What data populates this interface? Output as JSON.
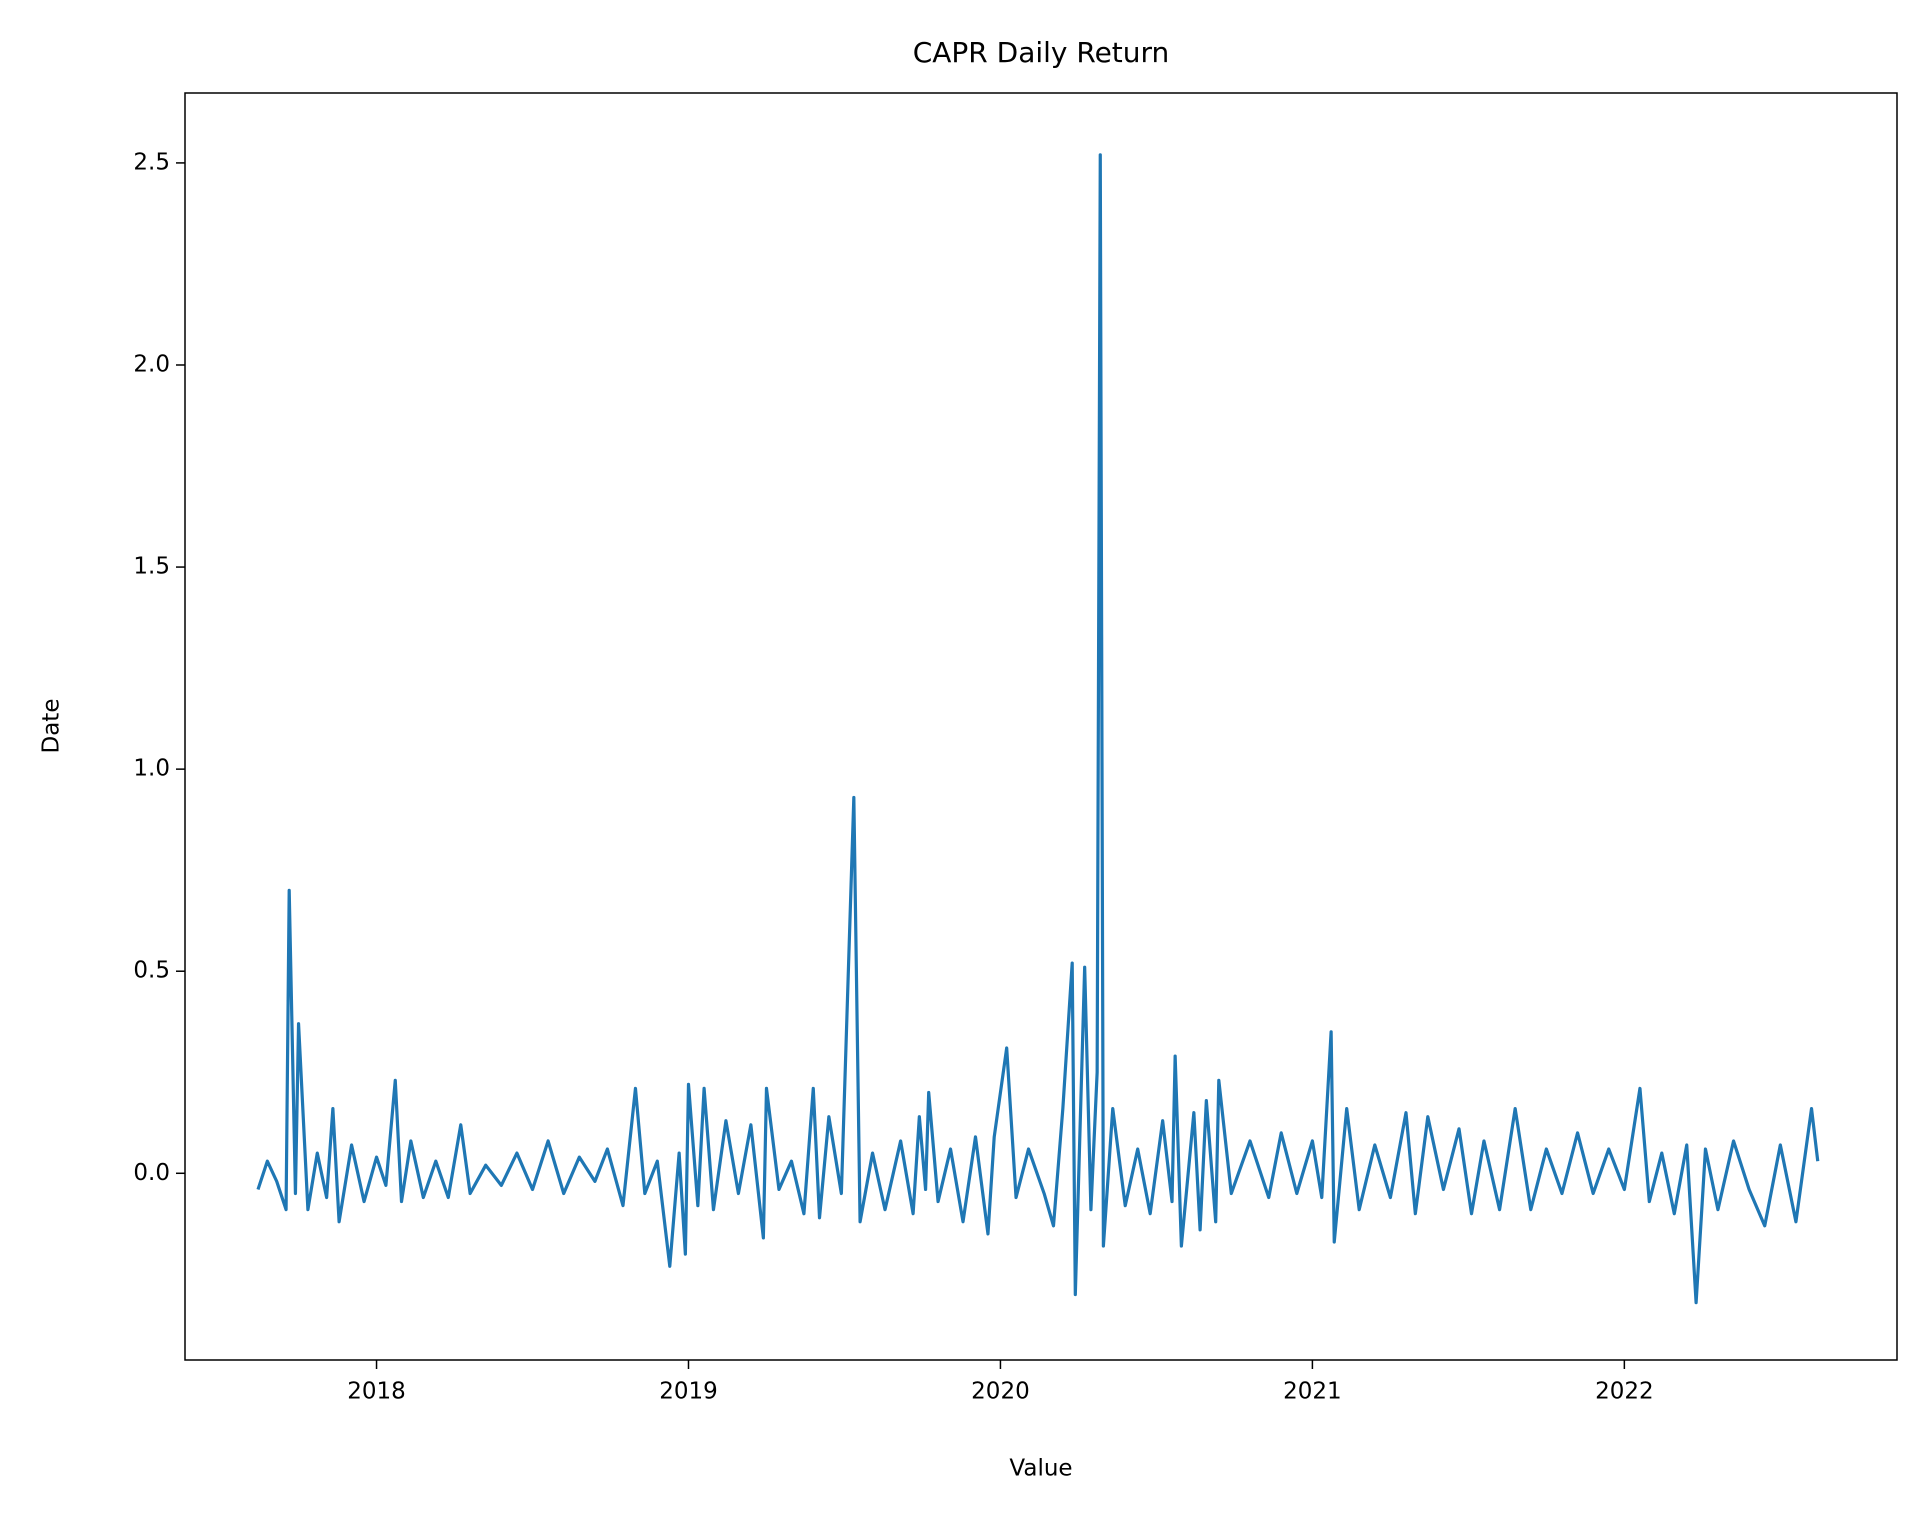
{
  "chart_data": {
    "type": "line",
    "title": "CAPR Daily Return",
    "x_label": "Value",
    "y_label": "Date",
    "x": [
      2017.62,
      2017.65,
      2017.68,
      2017.71,
      2017.72,
      2017.74,
      2017.75,
      2017.78,
      2017.81,
      2017.84,
      2017.86,
      2017.88,
      2017.92,
      2017.96,
      2018.0,
      2018.03,
      2018.06,
      2018.08,
      2018.11,
      2018.15,
      2018.19,
      2018.23,
      2018.27,
      2018.3,
      2018.35,
      2018.4,
      2018.45,
      2018.5,
      2018.55,
      2018.6,
      2018.65,
      2018.7,
      2018.74,
      2018.79,
      2018.83,
      2018.86,
      2018.9,
      2018.94,
      2018.97,
      2018.99,
      2019.0,
      2019.03,
      2019.05,
      2019.08,
      2019.12,
      2019.16,
      2019.2,
      2019.24,
      2019.25,
      2019.29,
      2019.33,
      2019.37,
      2019.4,
      2019.42,
      2019.45,
      2019.49,
      2019.53,
      2019.55,
      2019.59,
      2019.63,
      2019.68,
      2019.72,
      2019.74,
      2019.76,
      2019.77,
      2019.8,
      2019.84,
      2019.88,
      2019.92,
      2019.96,
      2019.98,
      2020.02,
      2020.05,
      2020.09,
      2020.14,
      2020.17,
      2020.2,
      2020.23,
      2020.24,
      2020.27,
      2020.29,
      2020.31,
      2020.32,
      2020.33,
      2020.36,
      2020.4,
      2020.44,
      2020.48,
      2020.52,
      2020.55,
      2020.56,
      2020.58,
      2020.62,
      2020.64,
      2020.66,
      2020.69,
      2020.7,
      2020.74,
      2020.8,
      2020.86,
      2020.9,
      2020.95,
      2021.0,
      2021.03,
      2021.06,
      2021.07,
      2021.11,
      2021.15,
      2021.2,
      2021.25,
      2021.3,
      2021.33,
      2021.37,
      2021.42,
      2021.47,
      2021.51,
      2021.55,
      2021.6,
      2021.65,
      2021.7,
      2021.75,
      2021.8,
      2021.85,
      2021.9,
      2021.95,
      2022.0,
      2022.05,
      2022.08,
      2022.12,
      2022.16,
      2022.2,
      2022.23,
      2022.26,
      2022.3,
      2022.35,
      2022.4,
      2022.45,
      2022.5,
      2022.55,
      2022.6,
      2022.62
    ],
    "series": [
      {
        "color": "#1f77b4",
        "values": [
          -0.04,
          0.03,
          -0.02,
          -0.09,
          0.7,
          -0.05,
          0.37,
          -0.09,
          0.05,
          -0.06,
          0.16,
          -0.12,
          0.07,
          -0.07,
          0.04,
          -0.03,
          0.23,
          -0.07,
          0.08,
          -0.06,
          0.03,
          -0.06,
          0.12,
          -0.05,
          0.02,
          -0.03,
          0.05,
          -0.04,
          0.08,
          -0.05,
          0.04,
          -0.02,
          0.06,
          -0.08,
          0.21,
          -0.05,
          0.03,
          -0.23,
          0.05,
          -0.2,
          0.22,
          -0.08,
          0.21,
          -0.09,
          0.13,
          -0.05,
          0.12,
          -0.16,
          0.21,
          -0.04,
          0.03,
          -0.1,
          0.21,
          -0.11,
          0.14,
          -0.05,
          0.93,
          -0.12,
          0.05,
          -0.09,
          0.08,
          -0.1,
          0.14,
          -0.04,
          0.2,
          -0.07,
          0.06,
          -0.12,
          0.09,
          -0.15,
          0.09,
          0.31,
          -0.06,
          0.06,
          -0.05,
          -0.13,
          0.16,
          0.52,
          -0.3,
          0.51,
          -0.09,
          0.25,
          2.52,
          -0.18,
          0.16,
          -0.08,
          0.06,
          -0.1,
          0.13,
          -0.07,
          0.29,
          -0.18,
          0.15,
          -0.14,
          0.18,
          -0.12,
          0.23,
          -0.05,
          0.08,
          -0.06,
          0.1,
          -0.05,
          0.08,
          -0.06,
          0.35,
          -0.17,
          0.16,
          -0.09,
          0.07,
          -0.06,
          0.15,
          -0.1,
          0.14,
          -0.04,
          0.11,
          -0.1,
          0.08,
          -0.09,
          0.16,
          -0.09,
          0.06,
          -0.05,
          0.1,
          -0.05,
          0.06,
          -0.04,
          0.21,
          -0.07,
          0.05,
          -0.1,
          0.07,
          -0.32,
          0.06,
          -0.09,
          0.08,
          -0.04,
          -0.13,
          0.07,
          -0.12,
          0.16,
          0.03
        ]
      }
    ],
    "xlim": [
      2017.386,
      2022.874
    ],
    "xticks": [
      2018,
      2019,
      2020,
      2021,
      2022
    ],
    "ylim": [
      -0.462,
      2.673
    ],
    "yticks": [
      {
        "value": 0,
        "label": "0.0"
      },
      0.5,
      {
        "value": 1,
        "label": "1.0"
      },
      1.5,
      {
        "value": 2,
        "label": "2.0"
      },
      2.5
    ]
  }
}
